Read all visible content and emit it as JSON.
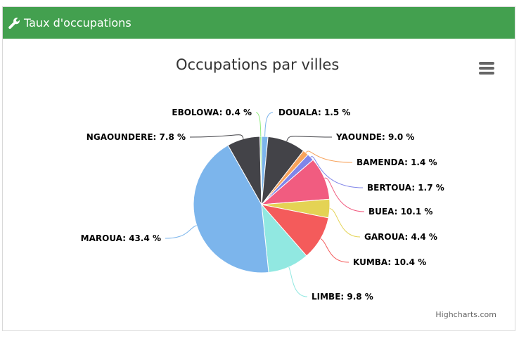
{
  "header": {
    "title": "Taux d'occupations",
    "icon": "wrench-icon",
    "bg_color": "#43a04f"
  },
  "chart_data": {
    "type": "pie",
    "title": "Occupations par villes",
    "credits": "Highcharts.com",
    "series": [
      {
        "name": "DOUALA",
        "value": 1.5,
        "label": "DOUALA: 1.5 %",
        "color": "#7cb5ec"
      },
      {
        "name": "YAOUNDE",
        "value": 9.0,
        "label": "YAOUNDE: 9.0 %",
        "color": "#434348"
      },
      {
        "name": "BAMENDA",
        "value": 1.4,
        "label": "BAMENDA: 1.4 %",
        "color": "#f7a35c"
      },
      {
        "name": "BERTOUA",
        "value": 1.7,
        "label": "BERTOUA: 1.7 %",
        "color": "#8085e9"
      },
      {
        "name": "BUEA",
        "value": 10.1,
        "label": "BUEA: 10.1 %",
        "color": "#f15c80"
      },
      {
        "name": "GAROUA",
        "value": 4.4,
        "label": "GAROUA: 4.4 %",
        "color": "#e4d354"
      },
      {
        "name": "KUMBA",
        "value": 10.4,
        "label": "KUMBA: 10.4 %",
        "color": "#f45b5b"
      },
      {
        "name": "LIMBE",
        "value": 9.8,
        "label": "LIMBE: 9.8 %",
        "color": "#91e8e1"
      },
      {
        "name": "MAROUA",
        "value": 43.4,
        "label": "MAROUA: 43.4 %",
        "color": "#7cb5ec"
      },
      {
        "name": "NGAOUNDERE",
        "value": 7.8,
        "label": "NGAOUNDERE: 7.8 %",
        "color": "#434348"
      },
      {
        "name": "EBOLOWA",
        "value": 0.4,
        "label": "EBOLOWA: 0.4 %",
        "color": "#90ed7d"
      }
    ]
  }
}
